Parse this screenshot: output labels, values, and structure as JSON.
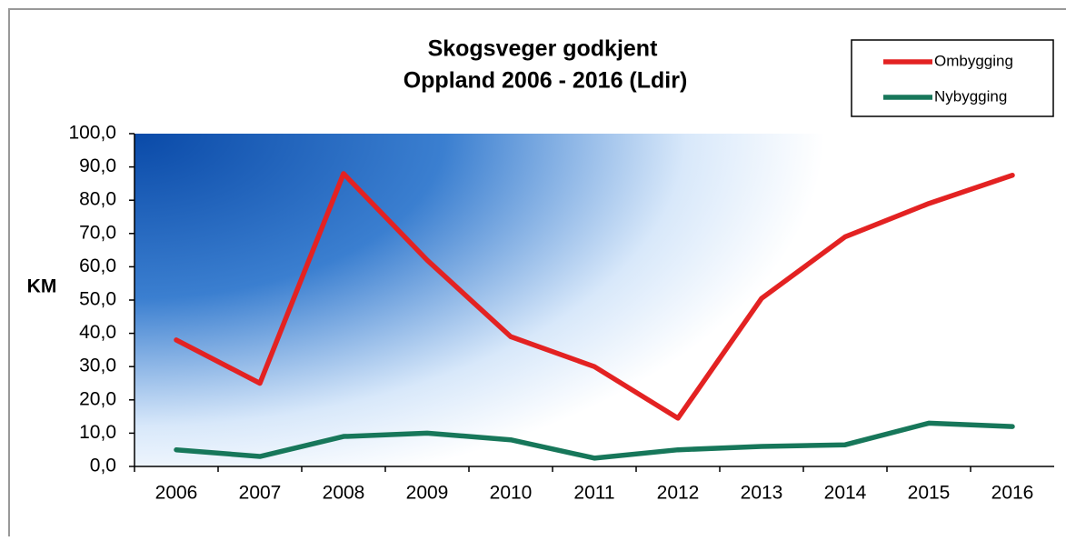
{
  "chart_data": {
    "type": "line",
    "title": [
      "Skogsveger godkjent",
      "Oppland 2006 - 2016 (Ldir)"
    ],
    "y_label": "KM",
    "categories": [
      "2006",
      "2007",
      "2008",
      "2009",
      "2010",
      "2011",
      "2012",
      "2013",
      "2014",
      "2015",
      "2016"
    ],
    "series": [
      {
        "name": "Ombygging",
        "color": "#e32222",
        "values": [
          38,
          25,
          88,
          62,
          39,
          30,
          14.5,
          50.5,
          69,
          79,
          87.5
        ]
      },
      {
        "name": "Nybygging",
        "color": "#17775a",
        "values": [
          5,
          3,
          9,
          10,
          8,
          2.5,
          5,
          6,
          6.5,
          13,
          12
        ]
      }
    ],
    "ylim": [
      0,
      100
    ],
    "yticks": [
      {
        "value": 0,
        "label": "0,0"
      },
      {
        "value": 10,
        "label": "10,0"
      },
      {
        "value": 20,
        "label": "20,0"
      },
      {
        "value": 30,
        "label": "30,0"
      },
      {
        "value": 40,
        "label": "40,0"
      },
      {
        "value": 50,
        "label": "50,0"
      },
      {
        "value": 60,
        "label": "60,0"
      },
      {
        "value": 70,
        "label": "70,0"
      },
      {
        "value": 80,
        "label": "80,0"
      },
      {
        "value": 90,
        "label": "90,0"
      },
      {
        "value": 100,
        "label": "100,0"
      }
    ],
    "legend": "top-right"
  }
}
